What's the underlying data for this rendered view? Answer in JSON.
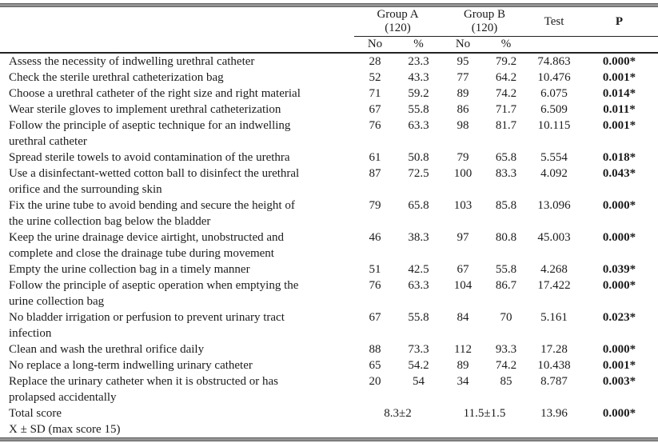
{
  "header": {
    "group_a": {
      "name": "Group A",
      "n": "(120)"
    },
    "group_b": {
      "name": "Group B",
      "n": "(120)"
    },
    "test": "Test",
    "p": "P",
    "no": "No",
    "pct": "%"
  },
  "rows": [
    {
      "item": "Assess the necessity of indwelling urethral catheter",
      "a_no": "28",
      "a_pct": "23.3",
      "b_no": "95",
      "b_pct": "79.2",
      "test": "74.863",
      "p": "0.000*"
    },
    {
      "item": "Check the sterile urethral catheterization bag",
      "a_no": "52",
      "a_pct": "43.3",
      "b_no": "77",
      "b_pct": "64.2",
      "test": "10.476",
      "p": "0.001*"
    },
    {
      "item": "Choose a urethral catheter of the right size and right material",
      "a_no": "71",
      "a_pct": "59.2",
      "b_no": "89",
      "b_pct": "74.2",
      "test": "6.075",
      "p": "0.014*"
    },
    {
      "item": "Wear sterile gloves to implement urethral catheterization",
      "a_no": "67",
      "a_pct": "55.8",
      "b_no": "86",
      "b_pct": "71.7",
      "test": "6.509",
      "p": "0.011*"
    },
    {
      "item": "Follow the principle of aseptic technique for an indwelling\nurethral catheter",
      "a_no": "76",
      "a_pct": "63.3",
      "b_no": "98",
      "b_pct": "81.7",
      "test": "10.115",
      "p": "0.001*"
    },
    {
      "item": "Spread sterile towels to avoid contamination of the urethra",
      "a_no": "61",
      "a_pct": "50.8",
      "b_no": "79",
      "b_pct": "65.8",
      "test": "5.554",
      "p": "0.018*"
    },
    {
      "item": "Use a disinfectant-wetted cotton ball to disinfect the urethral\norifice and the surrounding skin",
      "a_no": "87",
      "a_pct": "72.5",
      "b_no": "100",
      "b_pct": "83.3",
      "test": "4.092",
      "p": "0.043*"
    },
    {
      "item": "Fix the urine tube to avoid bending and secure the height of\nthe urine collection bag below the bladder",
      "a_no": "79",
      "a_pct": "65.8",
      "b_no": "103",
      "b_pct": "85.8",
      "test": "13.096",
      "p": "0.000*"
    },
    {
      "item": "Keep the urine drainage device airtight, unobstructed and\ncomplete and close the drainage tube during movement",
      "a_no": "46",
      "a_pct": "38.3",
      "b_no": "97",
      "b_pct": "80.8",
      "test": "45.003",
      "p": "0.000*"
    },
    {
      "item": "Empty the urine collection bag in a timely manner",
      "a_no": "51",
      "a_pct": "42.5",
      "b_no": "67",
      "b_pct": "55.8",
      "test": "4.268",
      "p": "0.039*"
    },
    {
      "item": "Follow the principle of aseptic operation when emptying the\nurine collection bag",
      "a_no": "76",
      "a_pct": "63.3",
      "b_no": "104",
      "b_pct": "86.7",
      "test": "17.422",
      "p": "0.000*"
    },
    {
      "item": "No bladder irrigation or perfusion to prevent urinary tract\ninfection",
      "a_no": "67",
      "a_pct": "55.8",
      "b_no": "84",
      "b_pct": "70",
      "test": "5.161",
      "p": "0.023*"
    },
    {
      "item": "Clean and wash the urethral orifice daily",
      "a_no": "88",
      "a_pct": "73.3",
      "b_no": "112",
      "b_pct": "93.3",
      "test": "17.28",
      "p": "0.000*"
    },
    {
      "item": "No replace a long-term indwelling urinary catheter",
      "a_no": "65",
      "a_pct": "54.2",
      "b_no": "89",
      "b_pct": "74.2",
      "test": "10.438",
      "p": "0.001*"
    },
    {
      "item": "Replace the urinary catheter when it is obstructed or has\nprolapsed accidentally",
      "a_no": "20",
      "a_pct": "54",
      "b_no": "34",
      "b_pct": "85",
      "test": "8.787",
      "p": "0.003*"
    }
  ],
  "total": {
    "item": "Total score",
    "a": "8.3±2",
    "b": "11.5±1.5",
    "test": "13.96",
    "p": "0.000*"
  },
  "footer_label": "X ± SD (max score 15)",
  "colors": {
    "rule_gray": "#949494",
    "rule_black": "#232323",
    "text": "#1b1b1b",
    "background": "#ffffff"
  }
}
